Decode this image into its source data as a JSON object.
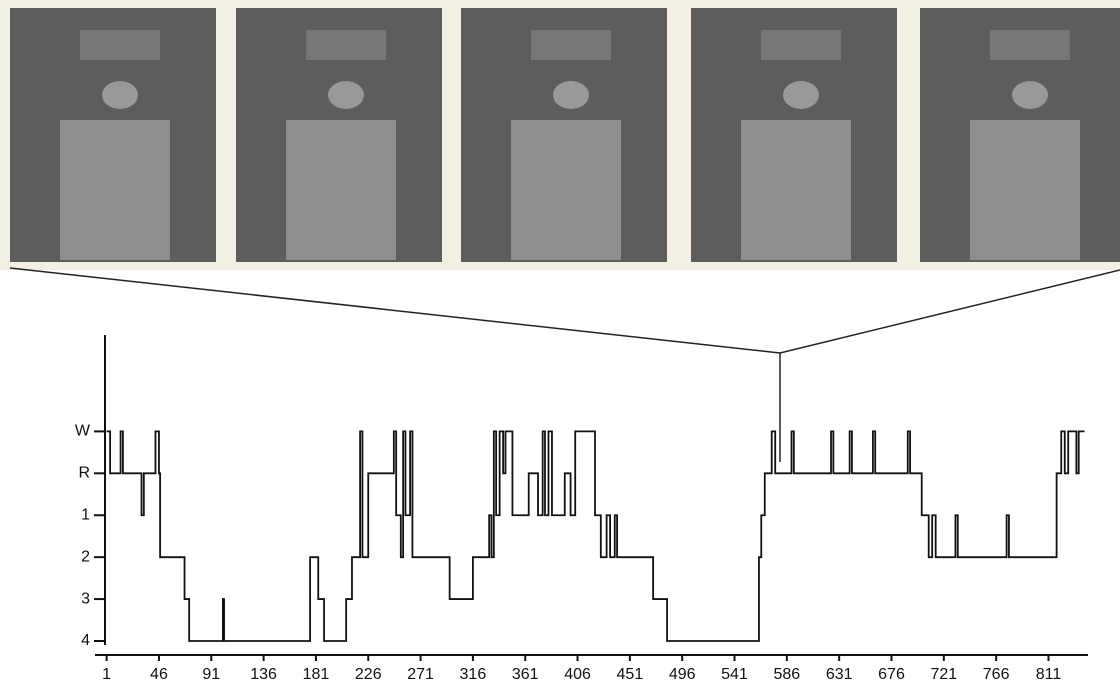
{
  "chart_data": {
    "type": "line",
    "step": "post",
    "x": [
      1,
      4,
      13,
      15,
      31,
      33,
      43,
      46,
      47,
      68,
      72,
      101,
      102,
      176,
      183,
      188,
      207,
      212,
      219,
      221,
      226,
      248,
      250,
      254,
      256,
      258,
      262,
      264,
      296,
      316,
      330,
      332,
      334,
      336,
      339,
      342,
      344,
      350,
      364,
      372,
      376,
      378,
      381,
      384,
      395,
      400,
      404,
      421,
      426,
      431,
      434,
      438,
      440,
      471,
      483,
      562,
      564,
      567,
      573,
      576,
      590,
      592,
      624,
      626,
      640,
      642,
      660,
      662,
      690,
      692,
      702,
      708,
      711,
      714,
      731,
      733,
      775,
      777,
      818,
      822,
      825,
      828,
      835,
      837,
      842
    ],
    "series": [
      {
        "color": "#111111",
        "values": [
          5,
          4,
          5,
          4,
          3,
          4,
          5,
          4,
          2,
          1,
          0,
          1,
          0,
          2,
          1,
          0,
          1,
          2,
          5,
          2,
          4,
          5,
          3,
          2,
          5,
          3,
          5,
          2,
          1,
          2,
          3,
          2,
          5,
          3,
          5,
          4,
          5,
          3,
          4,
          3,
          5,
          3,
          5,
          3,
          4,
          3,
          5,
          3,
          2,
          3,
          2,
          3,
          2,
          1,
          0,
          2,
          3,
          4,
          5,
          4,
          5,
          4,
          5,
          4,
          5,
          4,
          5,
          4,
          5,
          4,
          3,
          2,
          3,
          2,
          3,
          2,
          3,
          2,
          4,
          5,
          4,
          5,
          4,
          5,
          5
        ]
      }
    ],
    "xlim": [
      -9,
      845
    ],
    "ylim": [
      0,
      7.3
    ],
    "xticks": [
      1,
      46,
      91,
      136,
      181,
      226,
      271,
      316,
      361,
      406,
      451,
      496,
      541,
      586,
      631,
      676,
      721,
      766,
      811
    ],
    "yticks": [
      {
        "value": 0,
        "label": "4"
      },
      {
        "value": 1,
        "label": "3"
      },
      {
        "value": 2,
        "label": "2"
      },
      {
        "value": 3,
        "label": "1"
      },
      {
        "value": 4,
        "label": "R"
      },
      {
        "value": 5,
        "label": "W"
      }
    ]
  }
}
